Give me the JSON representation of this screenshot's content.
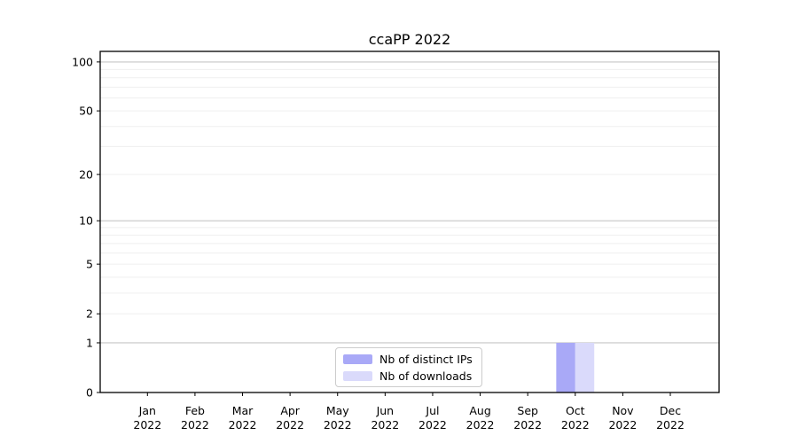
{
  "chart_data": {
    "type": "bar",
    "title": "ccaPP 2022",
    "categories": [
      "Jan",
      "Feb",
      "Mar",
      "Apr",
      "May",
      "Jun",
      "Jul",
      "Aug",
      "Sep",
      "Oct",
      "Nov",
      "Dec"
    ],
    "category_year": "2022",
    "series": [
      {
        "name": "Nb of distinct IPs",
        "color": "#a9a9f7",
        "values": [
          0,
          0,
          0,
          0,
          0,
          0,
          0,
          0,
          0,
          1,
          0,
          0
        ]
      },
      {
        "name": "Nb of downloads",
        "color": "#dadafb",
        "values": [
          0,
          0,
          0,
          0,
          0,
          0,
          0,
          0,
          0,
          1,
          0,
          0
        ]
      }
    ],
    "xlabel": "",
    "ylabel": "",
    "yscale": "log1p",
    "ylim": [
      0,
      116
    ],
    "y_tick_labels": [
      0,
      1,
      2,
      5,
      10,
      20,
      50,
      100
    ],
    "grid": {
      "major_values": [
        1,
        10,
        100
      ],
      "minor_values": [
        2,
        3,
        4,
        5,
        6,
        7,
        8,
        9,
        20,
        30,
        40,
        50,
        60,
        70,
        80,
        90
      ],
      "major_color": "#c6c6c6",
      "minor_color": "#efefef"
    },
    "legend": {
      "position": "lower center"
    },
    "colors": {
      "axis": "#000000",
      "text": "#000000",
      "background": "#ffffff"
    }
  }
}
